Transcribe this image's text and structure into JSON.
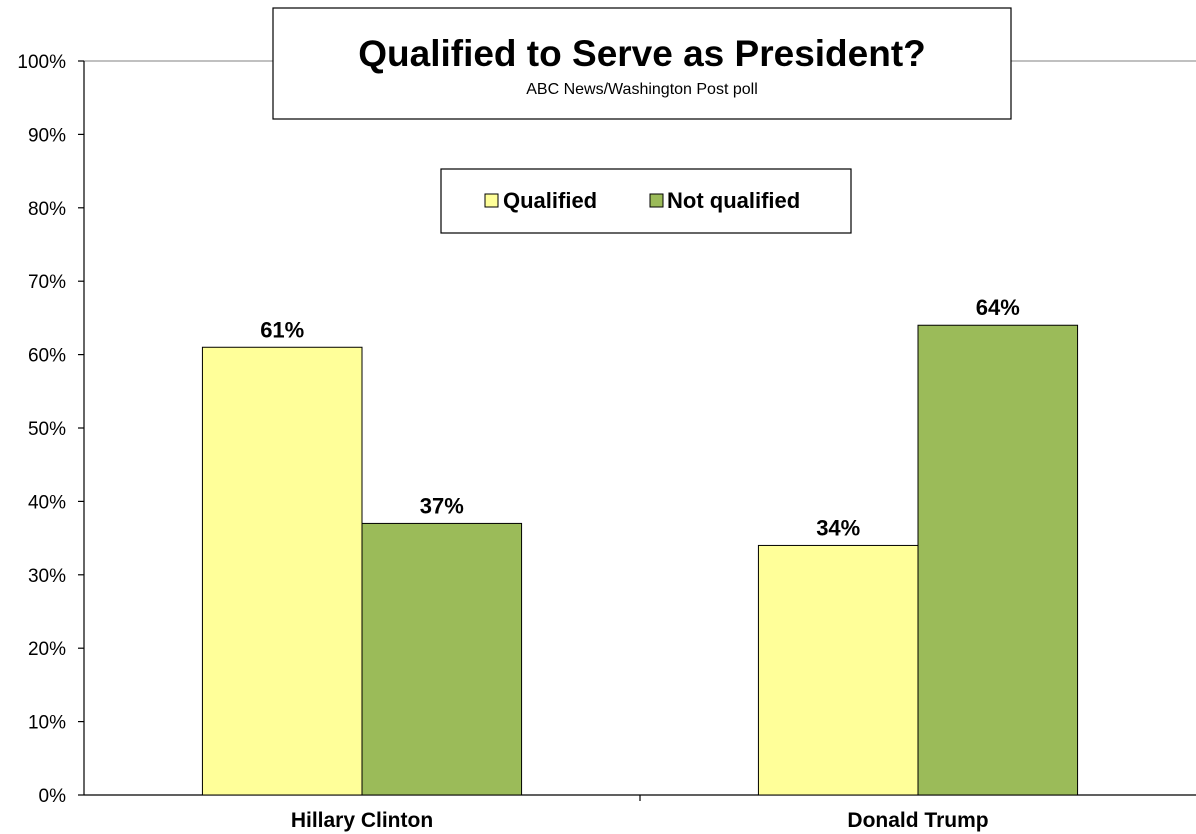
{
  "chart_data": {
    "type": "bar",
    "title": "Qualified to Serve as President?",
    "subtitle": "ABC News/Washington  Post poll",
    "categories": [
      "Hillary Clinton",
      "Donald Trump"
    ],
    "series": [
      {
        "name": "Qualified",
        "values": [
          61,
          34
        ],
        "labels": [
          "61%",
          "34%"
        ],
        "color": "#ffff99"
      },
      {
        "name": "Not qualified",
        "values": [
          37,
          64
        ],
        "labels": [
          "37%",
          "64%"
        ],
        "color": "#9bbb59"
      }
    ],
    "ylim": [
      0,
      100
    ],
    "yticks": [
      0,
      10,
      20,
      30,
      40,
      50,
      60,
      70,
      80,
      90,
      100
    ],
    "ytick_labels": [
      "0%",
      "10%",
      "20%",
      "30%",
      "40%",
      "50%",
      "60%",
      "70%",
      "80%",
      "90%",
      "100%"
    ],
    "grid": false,
    "legend_position": "top-center"
  }
}
